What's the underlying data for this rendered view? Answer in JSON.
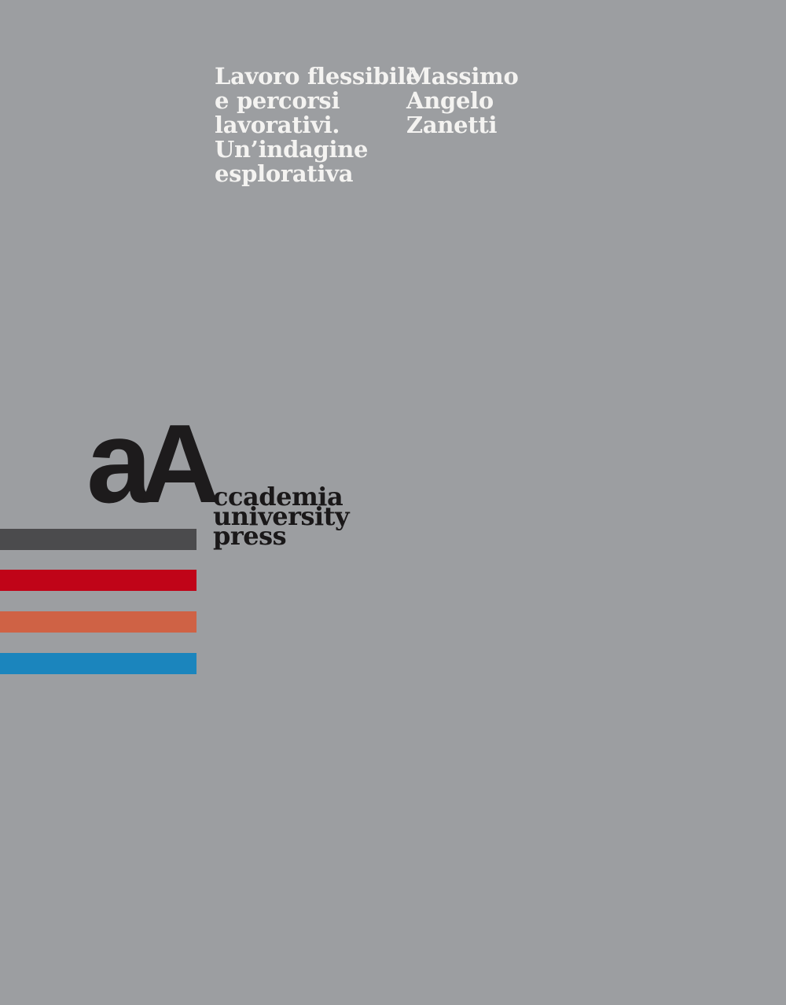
{
  "page": {
    "background_color": "#9c9ea1"
  },
  "title": {
    "text": "Lavoro flessibile\ne percorsi\nlavorativi.\nUn’indagine\nesplorativa",
    "color": "#f4f3f1"
  },
  "author": {
    "text": "Massimo\nAngelo\nZanetti",
    "color": "#f4f3f1"
  },
  "publisher": {
    "logo_lowercase": "a",
    "logo_uppercase": "A",
    "logo_color": "#1d1b1c",
    "name": "ccademia\nuniversity\npress",
    "name_color": "#1a1819"
  },
  "bars": [
    {
      "name": "dark-gray-bar",
      "color": "#4b4b4d"
    },
    {
      "name": "red-bar",
      "color": "#c00418"
    },
    {
      "name": "orange-bar",
      "color": "#cf6245"
    },
    {
      "name": "blue-bar",
      "color": "#1b85bd"
    }
  ]
}
